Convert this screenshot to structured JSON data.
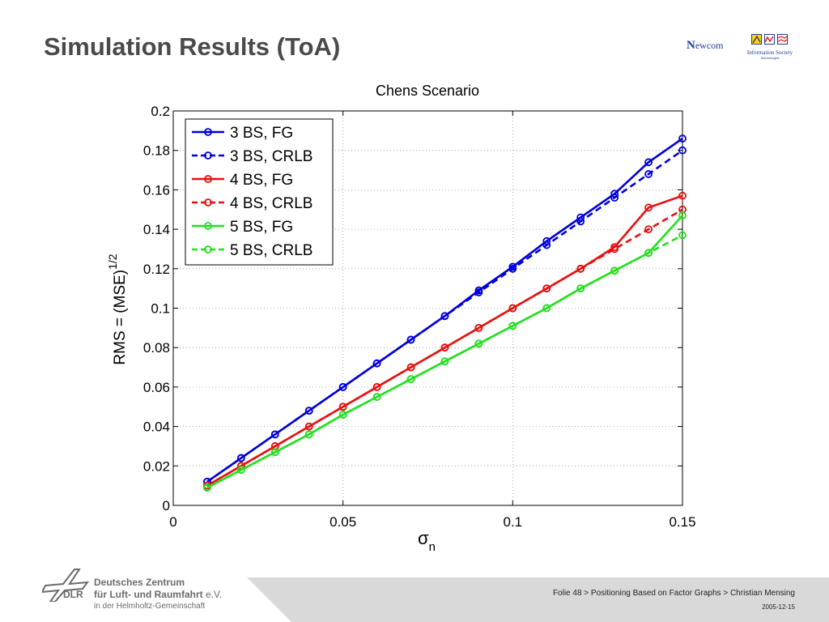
{
  "slide": {
    "title": "Simulation Results (ToA)",
    "footer_text": "Folie 48 > Positioning Based on Factor Graphs > Christian Mensing",
    "footer_date": "2005-12-15"
  },
  "logos": {
    "newcom_n": "N",
    "newcom_rest": "ewcom",
    "ist_line1": "Information Society",
    "ist_line2": "Technologies",
    "dlr_line1": "Deutsches Zentrum",
    "dlr_line2": "für Luft- und Raumfahrt",
    "dlr_ev": " e.V.",
    "dlr_line3": "in der Helmholtz-Gemeinschaft",
    "dlr_word": "DLR"
  },
  "colors": {
    "blue": "#0000dd",
    "red": "#e81010",
    "green": "#22e01e",
    "footer_band": "#d9d9d9",
    "title": "#4a4a4a"
  },
  "chart_data": {
    "type": "line",
    "title": "Chens Scenario",
    "xlabel": "σ",
    "xlabel_sub": "n",
    "ylabel": "RMS = (MSE)",
    "ylabel_sup": "1/2",
    "xlim": [
      0,
      0.15
    ],
    "ylim": [
      0,
      0.2
    ],
    "xticks": [
      0,
      0.05,
      0.1,
      0.15
    ],
    "xtick_labels": [
      "0",
      "0.05",
      "0.1",
      "0.15"
    ],
    "yticks": [
      0,
      0.02,
      0.04,
      0.06,
      0.08,
      0.1,
      0.12,
      0.14,
      0.16,
      0.18,
      0.2
    ],
    "ytick_labels": [
      "0",
      "0.02",
      "0.04",
      "0.06",
      "0.08",
      "0.1",
      "0.12",
      "0.14",
      "0.16",
      "0.18",
      "0.2"
    ],
    "grid": true,
    "legend_position": "top-left",
    "x": [
      0.01,
      0.02,
      0.03,
      0.04,
      0.05,
      0.06,
      0.07,
      0.08,
      0.09,
      0.1,
      0.11,
      0.12,
      0.13,
      0.14,
      0.15
    ],
    "series": [
      {
        "name": "3 BS, FG",
        "color": "blue",
        "style": "solid",
        "values": [
          0.012,
          0.024,
          0.036,
          0.048,
          0.06,
          0.072,
          0.084,
          0.096,
          0.109,
          0.121,
          0.134,
          0.146,
          0.158,
          0.174,
          0.186
        ]
      },
      {
        "name": "3 BS, CRLB",
        "color": "blue",
        "style": "dashed",
        "values": [
          0.012,
          0.024,
          0.036,
          0.048,
          0.06,
          0.072,
          0.084,
          0.096,
          0.108,
          0.12,
          0.132,
          0.144,
          0.156,
          0.168,
          0.18
        ]
      },
      {
        "name": "4 BS, FG",
        "color": "red",
        "style": "solid",
        "values": [
          0.01,
          0.02,
          0.03,
          0.04,
          0.05,
          0.06,
          0.07,
          0.08,
          0.09,
          0.1,
          0.11,
          0.12,
          0.131,
          0.151,
          0.157
        ]
      },
      {
        "name": "4 BS, CRLB",
        "color": "red",
        "style": "dashed",
        "values": [
          0.01,
          0.02,
          0.03,
          0.04,
          0.05,
          0.06,
          0.07,
          0.08,
          0.09,
          0.1,
          0.11,
          0.12,
          0.13,
          0.14,
          0.15
        ]
      },
      {
        "name": "5 BS, FG",
        "color": "green",
        "style": "solid",
        "values": [
          0.009,
          0.018,
          0.027,
          0.036,
          0.046,
          0.055,
          0.064,
          0.073,
          0.082,
          0.091,
          0.1,
          0.11,
          0.119,
          0.128,
          0.147
        ]
      },
      {
        "name": "5 BS, CRLB",
        "color": "green",
        "style": "dashed",
        "values": [
          0.009,
          0.018,
          0.027,
          0.036,
          0.046,
          0.055,
          0.064,
          0.073,
          0.082,
          0.091,
          0.1,
          0.11,
          0.119,
          0.128,
          0.137
        ]
      }
    ]
  }
}
